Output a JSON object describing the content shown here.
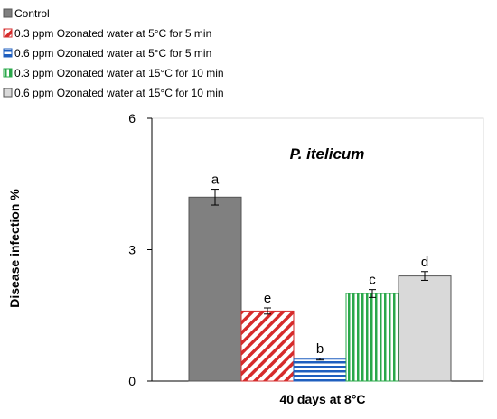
{
  "chart_data": {
    "type": "bar",
    "title": "P. itelicum",
    "xlabel": "40 days at 8°C",
    "ylabel": "Disease infection %",
    "ylim": [
      0,
      6
    ],
    "yticks": [
      "0",
      "3",
      "6"
    ],
    "categories": [
      "40 days at 8°C"
    ],
    "series": [
      {
        "name": "Control",
        "value": 4.2,
        "error": 0.18,
        "label": "a",
        "color": "#808080",
        "pattern": "solid"
      },
      {
        "name": "0.3 ppm Ozonated water at 5°C for 5 min",
        "value": 1.6,
        "error": 0.07,
        "label": "e",
        "color": "#d62b2b",
        "pattern": "diagonal"
      },
      {
        "name": "0.6 ppm Ozonated water at 5°C for 5 min",
        "value": 0.5,
        "error": 0.02,
        "label": "b",
        "color": "#1f5fbf",
        "pattern": "horizontal"
      },
      {
        "name": "0.3 ppm Ozonated water at 15°C for 10 min",
        "value": 2.0,
        "error": 0.09,
        "label": "c",
        "color": "#2aa84a",
        "pattern": "vertical"
      },
      {
        "name": "0.6 ppm Ozonated water at 15°C for 10 min",
        "value": 2.4,
        "error": 0.1,
        "label": "d",
        "color": "#d9d9d9",
        "pattern": "solid"
      }
    ],
    "legend_position": "top-left",
    "grid": false
  }
}
